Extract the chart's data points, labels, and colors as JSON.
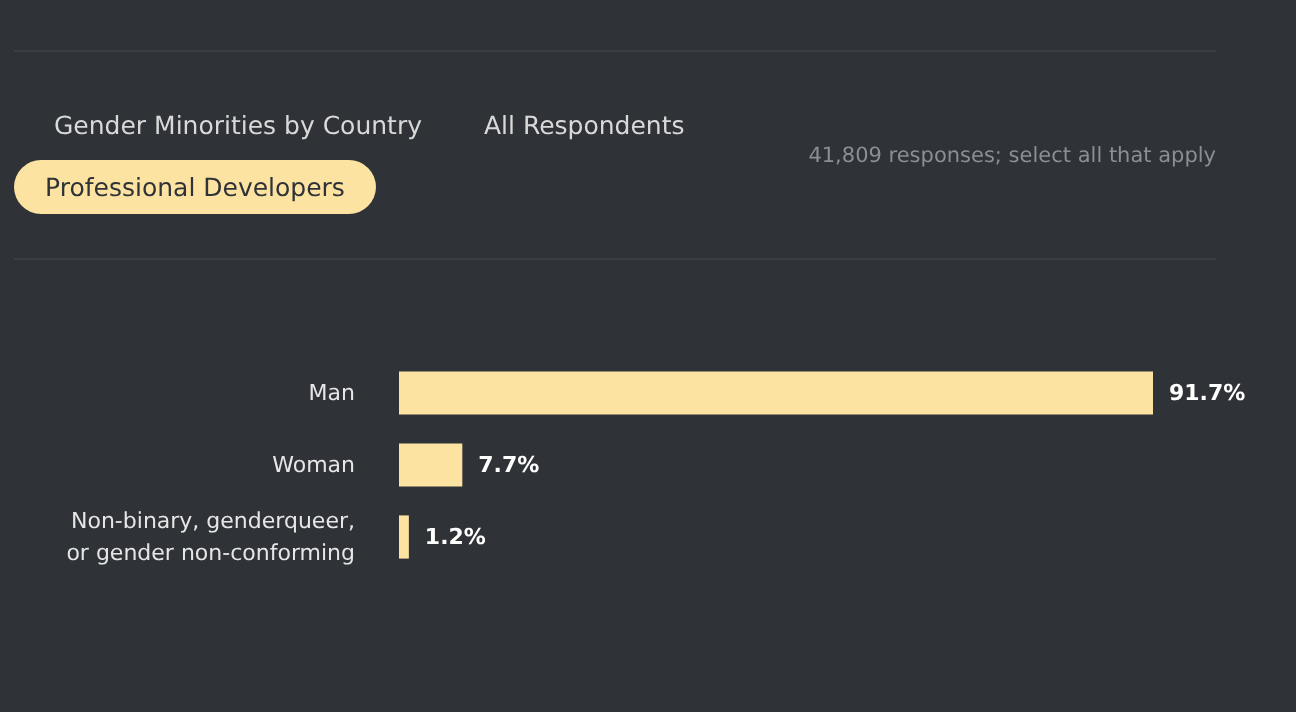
{
  "chart_data": {
    "type": "bar",
    "orientation": "horizontal",
    "annotations": [
      "Gender Minorities by Country",
      "All Respondents",
      "Professional Developers"
    ],
    "subtitle": "41,809 responses; select all that apply",
    "categories": [
      "Man",
      "Woman",
      "Non-binary, genderqueer, or gender non-conforming"
    ],
    "values": [
      91.7,
      7.7,
      1.2
    ],
    "value_labels": [
      "91.7%",
      "7.7%",
      "1.2%"
    ],
    "color": "#fde3a1"
  }
}
